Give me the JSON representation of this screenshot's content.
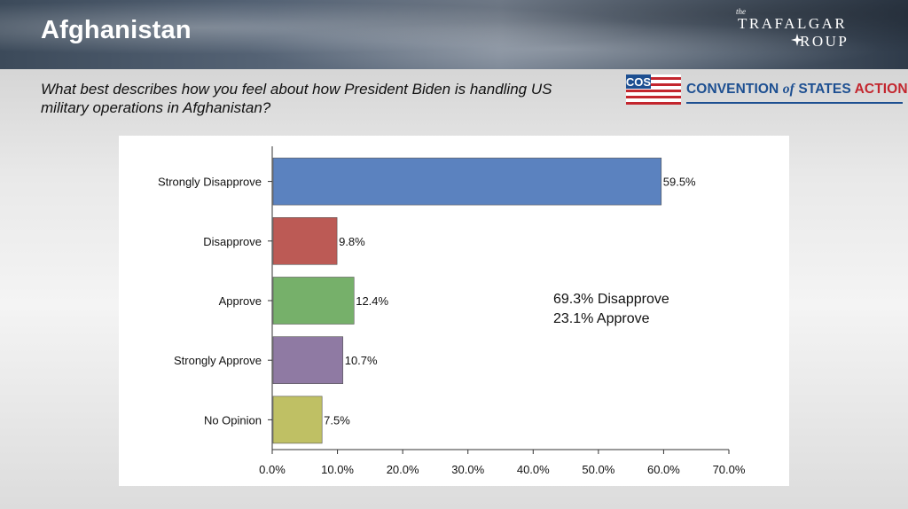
{
  "header": {
    "title": "Afghanistan"
  },
  "brand": {
    "trafalgar": {
      "the": "the",
      "line1": "TRAFALGAR",
      "line2": "ROUP"
    },
    "cos": {
      "badge": "COS",
      "name": "CONVENTION",
      "of": "of",
      "states": "STATES",
      "action": "ACTION"
    }
  },
  "question": "What best describes how you feel about how President Biden is handling US military operations in Afghanistan?",
  "summary": {
    "disapprove": "69.3% Disapprove",
    "approve": "23.1% Approve"
  },
  "colors": {
    "strongly_disapprove": "#5b82bf",
    "disapprove": "#bc5a55",
    "approve": "#76b06a",
    "strongly_approve": "#8f7aa3",
    "no_opinion": "#bfc064"
  },
  "chart_data": {
    "type": "bar",
    "orientation": "horizontal",
    "categories": [
      "Strongly Disapprove",
      "Disapprove",
      "Approve",
      "Strongly Approve",
      "No Opinion"
    ],
    "values": [
      59.5,
      9.8,
      12.4,
      10.7,
      7.5
    ],
    "value_labels": [
      "59.5%",
      "9.8%",
      "12.4%",
      "10.7%",
      "7.5%"
    ],
    "bar_colors": [
      "#5b82bf",
      "#bc5a55",
      "#76b06a",
      "#8f7aa3",
      "#bfc064"
    ],
    "xlim": [
      0,
      70
    ],
    "xticks": [
      0,
      10,
      20,
      30,
      40,
      50,
      60,
      70
    ],
    "xtick_labels": [
      "0.0%",
      "10.0%",
      "20.0%",
      "30.0%",
      "40.0%",
      "50.0%",
      "60.0%",
      "70.0%"
    ],
    "title": "",
    "xlabel": "",
    "ylabel": "",
    "grid": false
  }
}
